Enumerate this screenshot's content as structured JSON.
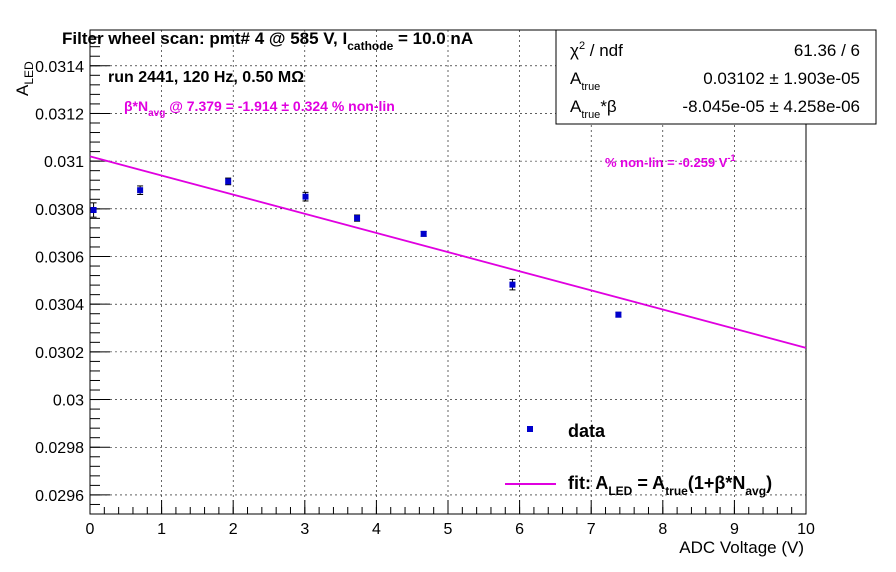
{
  "chart_data": {
    "type": "scatter",
    "title": {
      "pre": "Filter wheel scan: pmt#   4 @   585 V, I",
      "sub": "cathode",
      "post": "  = 10.0 nA"
    },
    "run_info": "run 2441, 120 Hz, 0.50 MΩ",
    "annotation_nonlin": {
      "pre": "β*N",
      "sub": "avg",
      "post": " @ 7.379 = -1.914 ± 0.324 % non-lin"
    },
    "annotation_slope": {
      "text": "% non-lin = -0.259 V",
      "sup": "-1"
    },
    "xlabel": "ADC Voltage (V)",
    "ylabel": {
      "main": "A",
      "sub": "LED"
    },
    "xlim": [
      0,
      10
    ],
    "ylim": [
      0.02952,
      0.03155
    ],
    "x_ticks": [
      0,
      1,
      2,
      3,
      4,
      5,
      6,
      7,
      8,
      9,
      10
    ],
    "x_tick_labels": [
      "0",
      "1",
      "2",
      "3",
      "4",
      "5",
      "6",
      "7",
      "8",
      "9",
      "10"
    ],
    "y_ticks": [
      0.0296,
      0.0298,
      0.03,
      0.0302,
      0.0304,
      0.0306,
      0.0308,
      0.031,
      0.0312,
      0.0314
    ],
    "y_tick_labels": [
      "0.0296",
      "0.0298",
      "0.03",
      "0.0302",
      "0.0304",
      "0.0306",
      "0.0308",
      "0.031",
      "0.0312",
      "0.0314"
    ],
    "grid": true,
    "series": [
      {
        "name": "data",
        "type": "scatter",
        "color": "#0000cc",
        "x": [
          0.05,
          0.7,
          1.93,
          3.01,
          3.73,
          4.66,
          5.9,
          7.38
        ],
        "y": [
          0.030795,
          0.030878,
          0.030915,
          0.030851,
          0.030761,
          0.030695,
          0.030482,
          0.030356
        ],
        "yerr": [
          3e-05,
          1.8e-05,
          1.4e-05,
          1.8e-05,
          1.3e-05,
          1e-05,
          2.2e-05,
          1e-05
        ]
      },
      {
        "name": "fit",
        "type": "line",
        "color": "#e000e0",
        "x": [
          0,
          10
        ],
        "y": [
          0.03102,
          0.030217
        ]
      }
    ],
    "legend": {
      "placement": "bottom-right",
      "entries": [
        {
          "label": "data"
        },
        {
          "label_parts": [
            "fit: A",
            "LED",
            " = A",
            "true",
            "(1+β*N",
            "avg",
            ")"
          ]
        }
      ]
    },
    "stats_box": {
      "placement": "top-right",
      "rows": [
        {
          "label_pre": "χ",
          "label_sup": "2",
          "label_post": " / ndf",
          "value": "61.36 / 6"
        },
        {
          "label_pre": "A",
          "label_sub": "true",
          "label_post": "",
          "value": "0.03102 ± 1.903e-05"
        },
        {
          "label_pre": "A",
          "label_sub": "true",
          "label_post": "*β",
          "value": "-8.045e-05 ± 4.258e-06"
        }
      ]
    }
  }
}
